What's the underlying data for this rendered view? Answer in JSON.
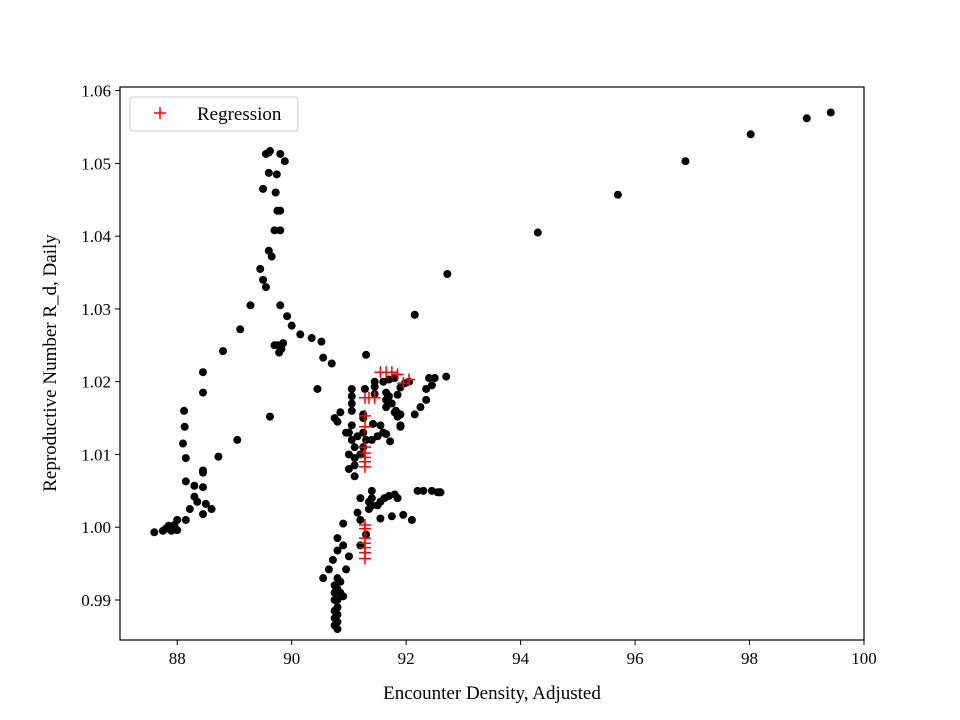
{
  "chart_data": {
    "type": "scatter",
    "title": "",
    "xlabel": "Encounter Density, Adjusted",
    "ylabel": "Reproductive Number R_d, Daily",
    "xlim": [
      87.0,
      100.0
    ],
    "ylim": [
      0.9845,
      1.0605
    ],
    "x_ticks": [
      88,
      90,
      92,
      94,
      96,
      98,
      100
    ],
    "x_tick_labels": [
      "88",
      "90",
      "92",
      "94",
      "96",
      "98",
      "100"
    ],
    "y_ticks": [
      0.99,
      1.0,
      1.01,
      1.02,
      1.03,
      1.04,
      1.05,
      1.06
    ],
    "y_tick_labels": [
      "0.99",
      "1.00",
      "1.01",
      "1.02",
      "1.03",
      "1.04",
      "1.05",
      "1.06"
    ],
    "grid": false,
    "legend_position": "top-left",
    "series": [
      {
        "marker": "circle",
        "color": "#000000",
        "points": [
          [
            87.6,
            0.9993
          ],
          [
            87.75,
            0.9995
          ],
          [
            87.8,
            0.9998
          ],
          [
            87.85,
            1.0002
          ],
          [
            87.9,
            0.9995
          ],
          [
            87.95,
            1.0003
          ],
          [
            88.0,
            0.9996
          ],
          [
            88.0,
            1.001
          ],
          [
            88.1,
            1.0115
          ],
          [
            88.12,
            1.016
          ],
          [
            88.13,
            1.0138
          ],
          [
            88.15,
            1.0095
          ],
          [
            88.15,
            1.0063
          ],
          [
            88.15,
            1.001
          ],
          [
            88.22,
            1.0025
          ],
          [
            88.3,
            1.0057
          ],
          [
            88.3,
            1.0042
          ],
          [
            88.35,
            1.0035
          ],
          [
            88.45,
            1.0213
          ],
          [
            88.45,
            1.0185
          ],
          [
            88.45,
            1.0078
          ],
          [
            88.45,
            1.0075
          ],
          [
            88.45,
            1.0055
          ],
          [
            88.45,
            1.0018
          ],
          [
            88.5,
            1.0032
          ],
          [
            88.6,
            1.0025
          ],
          [
            88.72,
            1.0097
          ],
          [
            88.8,
            1.0242
          ],
          [
            89.05,
            1.012
          ],
          [
            89.1,
            1.0272
          ],
          [
            89.28,
            1.0305
          ],
          [
            89.45,
            1.0355
          ],
          [
            89.5,
            1.034
          ],
          [
            89.55,
            1.033
          ],
          [
            89.5,
            1.0465
          ],
          [
            89.55,
            1.0513
          ],
          [
            89.6,
            1.0515
          ],
          [
            89.62,
            1.0517
          ],
          [
            89.6,
            1.0487
          ],
          [
            89.6,
            1.038
          ],
          [
            89.62,
            1.0152
          ],
          [
            89.65,
            1.0372
          ],
          [
            89.7,
            1.0408
          ],
          [
            89.7,
            1.025
          ],
          [
            89.72,
            1.046
          ],
          [
            89.74,
            1.0485
          ],
          [
            89.75,
            1.0435
          ],
          [
            89.75,
            1.025
          ],
          [
            89.78,
            1.024
          ],
          [
            89.8,
            1.0408
          ],
          [
            89.8,
            1.0435
          ],
          [
            89.8,
            1.0513
          ],
          [
            89.8,
            1.0305
          ],
          [
            89.82,
            1.0245
          ],
          [
            89.85,
            1.0253
          ],
          [
            89.88,
            1.0503
          ],
          [
            89.92,
            1.029
          ],
          [
            90.0,
            1.0277
          ],
          [
            90.15,
            1.0265
          ],
          [
            90.35,
            1.026
          ],
          [
            90.45,
            1.019
          ],
          [
            90.52,
            1.0255
          ],
          [
            90.55,
            0.993
          ],
          [
            90.55,
            1.0233
          ],
          [
            90.65,
            0.9942
          ],
          [
            90.7,
            1.0225
          ],
          [
            90.72,
            0.9955
          ],
          [
            90.75,
            0.992
          ],
          [
            90.75,
            0.991
          ],
          [
            90.75,
            0.99
          ],
          [
            90.75,
            0.9885
          ],
          [
            90.75,
            0.9875
          ],
          [
            90.75,
            0.9865
          ],
          [
            90.75,
            1.015
          ],
          [
            90.8,
            0.986
          ],
          [
            90.8,
            0.987
          ],
          [
            90.8,
            0.988
          ],
          [
            90.8,
            0.989
          ],
          [
            90.8,
            0.99
          ],
          [
            90.8,
            0.9915
          ],
          [
            90.8,
            0.993
          ],
          [
            90.8,
            0.9968
          ],
          [
            90.8,
            0.9985
          ],
          [
            90.8,
            1.0145
          ],
          [
            90.85,
            0.991
          ],
          [
            90.85,
            0.9925
          ],
          [
            90.85,
            1.0158
          ],
          [
            90.9,
            0.9905
          ],
          [
            90.9,
            0.9975
          ],
          [
            90.9,
            1.0005
          ],
          [
            90.95,
            0.9942
          ],
          [
            90.95,
            1.013
          ],
          [
            91.0,
            1.013
          ],
          [
            91.0,
            1.01
          ],
          [
            91.0,
            1.008
          ],
          [
            91.0,
            0.996
          ],
          [
            91.05,
            1.012
          ],
          [
            91.05,
            1.017
          ],
          [
            91.05,
            1.019
          ],
          [
            91.05,
            1.018
          ],
          [
            91.05,
            1.016
          ],
          [
            91.05,
            1.014
          ],
          [
            91.1,
            1.011
          ],
          [
            91.1,
            1.0095
          ],
          [
            91.1,
            1.0085
          ],
          [
            91.1,
            1.007
          ],
          [
            91.15,
            1.0125
          ],
          [
            91.15,
            1.002
          ],
          [
            91.2,
            1.01
          ],
          [
            91.2,
            1.004
          ],
          [
            91.2,
            1.001
          ],
          [
            91.2,
            0.9975
          ],
          [
            91.25,
            1.0155
          ],
          [
            91.25,
            1.015
          ],
          [
            91.25,
            1.013
          ],
          [
            91.25,
            1.011
          ],
          [
            91.28,
            1.019
          ],
          [
            91.3,
            1.0237
          ],
          [
            91.3,
            1.012
          ],
          [
            91.3,
            0.999
          ],
          [
            91.35,
            1.0035
          ],
          [
            91.35,
            1.0025
          ],
          [
            91.4,
            1.003
          ],
          [
            91.4,
            1.004
          ],
          [
            91.4,
            1.005
          ],
          [
            91.4,
            1.012
          ],
          [
            91.42,
            1.0142
          ],
          [
            91.45,
            1.0193
          ],
          [
            91.45,
            1.0183
          ],
          [
            91.45,
            1.02
          ],
          [
            91.5,
            1.003
          ],
          [
            91.5,
            1.0125
          ],
          [
            91.55,
            1.014
          ],
          [
            91.55,
            1.0035
          ],
          [
            91.55,
            1.0012
          ],
          [
            91.6,
            1.02
          ],
          [
            91.6,
            1.013
          ],
          [
            91.62,
            1.004
          ],
          [
            91.65,
            1.0185
          ],
          [
            91.65,
            1.0175
          ],
          [
            91.65,
            1.0165
          ],
          [
            91.65,
            1.0128
          ],
          [
            91.7,
            1.0203
          ],
          [
            91.7,
            1.018
          ],
          [
            91.7,
            1.0043
          ],
          [
            91.72,
            1.0118
          ],
          [
            91.75,
            1.017
          ],
          [
            91.75,
            1.0015
          ],
          [
            91.8,
            1.0205
          ],
          [
            91.8,
            1.0045
          ],
          [
            91.8,
            1.0158
          ],
          [
            91.82,
            1.016
          ],
          [
            91.85,
            1.0182
          ],
          [
            91.85,
            1.0152
          ],
          [
            91.85,
            1.004
          ],
          [
            91.9,
            1.0192
          ],
          [
            91.9,
            1.0138
          ],
          [
            91.9,
            1.0155
          ],
          [
            91.9,
            1.014
          ],
          [
            91.95,
            1.0017
          ],
          [
            91.98,
            1.0198
          ],
          [
            92.05,
            1.02
          ],
          [
            92.1,
            1.001
          ],
          [
            92.15,
            1.0155
          ],
          [
            92.2,
            1.005
          ],
          [
            92.25,
            1.0165
          ],
          [
            92.3,
            1.005
          ],
          [
            92.35,
            1.019
          ],
          [
            92.35,
            1.0175
          ],
          [
            92.4,
            1.0205
          ],
          [
            92.45,
            1.0195
          ],
          [
            92.45,
            1.005
          ],
          [
            92.5,
            1.0205
          ],
          [
            92.55,
            1.0048
          ],
          [
            92.58,
            1.0048
          ],
          [
            92.6,
            1.0048
          ],
          [
            92.7,
            1.0207
          ],
          [
            92.15,
            1.0292
          ],
          [
            92.72,
            1.0348
          ],
          [
            94.3,
            1.0405
          ],
          [
            95.7,
            1.0457
          ],
          [
            96.88,
            1.0503
          ],
          [
            98.02,
            1.054
          ],
          [
            99.0,
            1.0562
          ],
          [
            99.42,
            1.057
          ]
        ]
      },
      {
        "name": "Regression",
        "marker": "plus",
        "color": "#ff0000",
        "points": [
          [
            91.55,
            1.0213
          ],
          [
            91.75,
            1.0213
          ],
          [
            91.65,
            1.0213
          ],
          [
            91.85,
            1.021
          ],
          [
            92.05,
            1.0203
          ],
          [
            91.95,
            1.0198
          ],
          [
            91.45,
            1.0178
          ],
          [
            91.35,
            1.0178
          ],
          [
            91.28,
            1.0178
          ],
          [
            91.28,
            1.0153
          ],
          [
            91.28,
            1.0138
          ],
          [
            91.28,
            1.011
          ],
          [
            91.28,
            1.0102
          ],
          [
            91.28,
            1.0096
          ],
          [
            91.28,
            1.009
          ],
          [
            91.28,
            1.0083
          ],
          [
            91.28,
            1.0003
          ],
          [
            91.28,
            0.9998
          ],
          [
            91.28,
            0.9985
          ],
          [
            91.28,
            0.9978
          ],
          [
            91.28,
            0.9972
          ],
          [
            91.28,
            0.9965
          ],
          [
            91.28,
            0.9957
          ]
        ]
      }
    ]
  }
}
